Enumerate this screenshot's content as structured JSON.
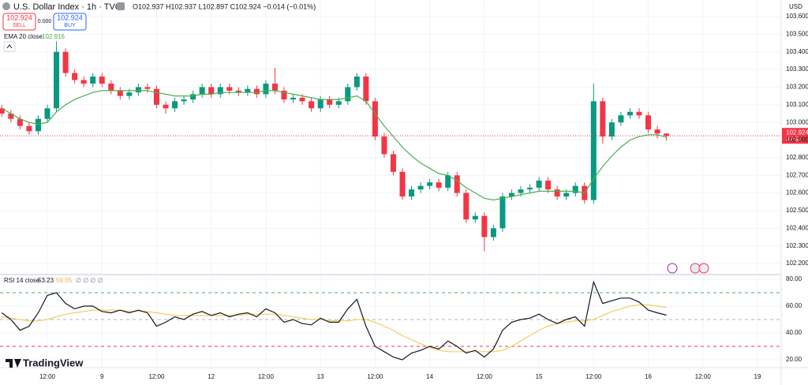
{
  "header": {
    "symbol": "U.S. Dollar Index · 1h · TVC",
    "ohlc": "O102.937 H102.937 L102.897 C102.924 −0.014 (−0.01%)",
    "sell_price": "102.924",
    "sell": "SELL",
    "spread": "0.000",
    "buy_price": "102.924",
    "buy": "BUY",
    "currency": "USD",
    "price_tag": "102.924",
    "countdown": "37:53",
    "logo": "TradingView",
    "rsi_extra": "∅ ∅ ∅ ∅"
  },
  "chart_data": [
    {
      "type": "candlestick",
      "up_color": "#089981",
      "down_color": "#f23645",
      "x": [
        -10,
        -8,
        -6,
        -4,
        -2,
        0,
        2,
        4,
        6,
        8,
        10,
        12,
        14,
        16,
        18,
        20,
        22,
        24,
        26,
        28,
        30,
        32,
        34,
        36,
        38,
        40,
        42,
        44,
        46,
        48,
        50,
        52,
        54,
        56,
        58,
        60,
        62,
        64,
        66,
        68,
        70,
        72,
        74,
        76,
        78,
        80,
        82,
        84,
        86,
        88,
        90,
        92,
        94,
        96,
        98,
        100,
        102,
        104,
        106,
        108,
        110,
        112,
        114,
        116,
        118,
        120,
        122,
        124,
        126,
        128,
        130,
        132,
        134,
        136
      ],
      "open": [
        103.08,
        103.05,
        103.02,
        102.98,
        102.95,
        103.02,
        103.08,
        103.4,
        103.28,
        103.24,
        103.22,
        103.26,
        103.22,
        103.18,
        103.15,
        103.17,
        103.2,
        103.19,
        103.1,
        103.08,
        103.12,
        103.13,
        103.16,
        103.2,
        103.16,
        103.2,
        103.18,
        103.17,
        103.19,
        103.16,
        103.22,
        103.18,
        103.13,
        103.14,
        103.12,
        103.08,
        103.13,
        103.1,
        103.12,
        103.2,
        103.26,
        103.12,
        102.92,
        102.82,
        102.72,
        102.58,
        102.62,
        102.64,
        102.66,
        102.63,
        102.7,
        102.6,
        102.45,
        102.47,
        102.35,
        102.4,
        102.58,
        102.6,
        102.62,
        102.63,
        102.67,
        102.62,
        102.58,
        102.6,
        102.64,
        102.56,
        103.12,
        102.92,
        103.0,
        103.04,
        103.06,
        103.04,
        102.96,
        102.937
      ],
      "high": [
        103.1,
        103.07,
        103.04,
        103.0,
        103.04,
        103.1,
        103.46,
        103.42,
        103.3,
        103.26,
        103.28,
        103.28,
        103.24,
        103.2,
        103.19,
        103.22,
        103.22,
        103.21,
        103.12,
        103.14,
        103.15,
        103.18,
        103.22,
        103.22,
        103.22,
        103.22,
        103.2,
        103.21,
        103.21,
        103.24,
        103.31,
        103.2,
        103.16,
        103.16,
        103.14,
        103.15,
        103.15,
        103.14,
        103.22,
        103.28,
        103.28,
        103.14,
        102.94,
        102.84,
        102.74,
        102.64,
        102.66,
        102.68,
        102.68,
        102.72,
        102.72,
        102.62,
        102.49,
        102.49,
        102.42,
        102.6,
        102.62,
        102.64,
        102.65,
        102.69,
        102.69,
        102.64,
        102.62,
        102.66,
        102.66,
        103.22,
        103.14,
        103.02,
        103.06,
        103.08,
        103.08,
        103.06,
        102.98,
        102.937
      ],
      "low": [
        103.03,
        103.0,
        102.96,
        102.93,
        102.93,
        103.0,
        103.06,
        103.26,
        103.22,
        103.2,
        103.2,
        103.2,
        103.16,
        103.13,
        103.13,
        103.15,
        103.17,
        103.08,
        103.05,
        103.06,
        103.1,
        103.11,
        103.14,
        103.14,
        103.14,
        103.16,
        103.15,
        103.15,
        103.14,
        103.14,
        103.16,
        103.11,
        103.11,
        103.1,
        103.06,
        103.06,
        103.08,
        103.08,
        103.1,
        103.18,
        103.1,
        102.9,
        102.8,
        102.7,
        102.56,
        102.56,
        102.6,
        102.62,
        102.61,
        102.61,
        102.58,
        102.43,
        102.43,
        102.27,
        102.33,
        102.38,
        102.56,
        102.58,
        102.6,
        102.61,
        102.6,
        102.56,
        102.56,
        102.58,
        102.54,
        102.54,
        102.88,
        102.9,
        102.98,
        103.02,
        103.02,
        102.94,
        102.91,
        102.897
      ],
      "close": [
        103.05,
        103.02,
        102.98,
        102.95,
        103.02,
        103.08,
        103.4,
        103.28,
        103.24,
        103.22,
        103.26,
        103.22,
        103.18,
        103.15,
        103.17,
        103.2,
        103.19,
        103.1,
        103.08,
        103.12,
        103.13,
        103.16,
        103.2,
        103.16,
        103.2,
        103.18,
        103.17,
        103.19,
        103.16,
        103.22,
        103.18,
        103.13,
        103.14,
        103.12,
        103.08,
        103.13,
        103.1,
        103.12,
        103.2,
        103.26,
        103.12,
        102.92,
        102.82,
        102.72,
        102.58,
        102.62,
        102.64,
        102.66,
        102.63,
        102.7,
        102.6,
        102.45,
        102.47,
        102.35,
        102.4,
        102.58,
        102.6,
        102.62,
        102.63,
        102.67,
        102.62,
        102.58,
        102.6,
        102.64,
        102.56,
        103.12,
        102.92,
        103.0,
        103.04,
        103.06,
        103.04,
        102.96,
        102.937,
        102.924
      ],
      "series": [
        {
          "name": "EMA 20 close",
          "color": "#4caf50",
          "last_label": "102.916",
          "values": [
            103.08,
            103.05,
            103.02,
            103.0,
            102.99,
            103.0,
            103.06,
            103.1,
            103.13,
            103.15,
            103.17,
            103.18,
            103.18,
            103.18,
            103.18,
            103.18,
            103.18,
            103.17,
            103.16,
            103.15,
            103.15,
            103.15,
            103.16,
            103.16,
            103.17,
            103.17,
            103.17,
            103.17,
            103.17,
            103.18,
            103.18,
            103.17,
            103.16,
            103.15,
            103.14,
            103.13,
            103.13,
            103.13,
            103.14,
            103.15,
            103.12,
            103.05,
            102.98,
            102.92,
            102.86,
            102.81,
            102.77,
            102.74,
            102.71,
            102.7,
            102.67,
            102.63,
            102.6,
            102.57,
            102.56,
            102.57,
            102.58,
            102.59,
            102.6,
            102.61,
            102.61,
            102.61,
            102.61,
            102.61,
            102.6,
            102.68,
            102.75,
            102.81,
            102.86,
            102.9,
            102.92,
            102.93,
            102.93,
            102.916
          ]
        }
      ],
      "xlim": [
        -10.4,
        161.2
      ],
      "ylim": [
        102.142,
        103.694
      ],
      "yticks": [
        {
          "value": 103.6,
          "label": "103.600"
        },
        {
          "value": 103.5,
          "label": "103.500"
        },
        {
          "value": 103.4,
          "label": "103.400"
        },
        {
          "value": 103.3,
          "label": "103.300"
        },
        {
          "value": 103.2,
          "label": "103.200"
        },
        {
          "value": 103.1,
          "label": "103.100"
        },
        {
          "value": 103.0,
          "label": "103.000"
        },
        {
          "value": 102.9,
          "label": "102.900"
        },
        {
          "value": 102.8,
          "label": "102.800"
        },
        {
          "value": 102.7,
          "label": "102.700"
        },
        {
          "value": 102.6,
          "label": "102.600"
        },
        {
          "value": 102.5,
          "label": "102.500"
        },
        {
          "value": 102.4,
          "label": "102.400"
        },
        {
          "value": 102.3,
          "label": "102.300"
        },
        {
          "value": 102.2,
          "label": "102.200"
        }
      ],
      "grid": true
    },
    {
      "type": "line",
      "x": [
        -10,
        -8,
        -6,
        -4,
        -2,
        0,
        2,
        4,
        6,
        8,
        10,
        12,
        14,
        16,
        18,
        20,
        22,
        24,
        26,
        28,
        30,
        32,
        34,
        36,
        38,
        40,
        42,
        44,
        46,
        48,
        50,
        52,
        54,
        56,
        58,
        60,
        62,
        64,
        66,
        68,
        70,
        72,
        74,
        76,
        78,
        80,
        82,
        84,
        86,
        88,
        90,
        92,
        94,
        96,
        98,
        100,
        102,
        104,
        106,
        108,
        110,
        112,
        114,
        116,
        118,
        120,
        122,
        124,
        126,
        128,
        130,
        132,
        134,
        136
      ],
      "series": [
        {
          "name": "RSI 14 close",
          "color": "#131722",
          "last_label": "53.23",
          "values": [
            55,
            50,
            42,
            45,
            55,
            68,
            70,
            62,
            58,
            60,
            60,
            56,
            55,
            57,
            55,
            57,
            55,
            45,
            48,
            52,
            50,
            54,
            56,
            53,
            55,
            52,
            54,
            55,
            52,
            58,
            55,
            48,
            50,
            47,
            46,
            51,
            48,
            48,
            58,
            65,
            45,
            30,
            26,
            22,
            20,
            25,
            27,
            30,
            28,
            34,
            30,
            25,
            27,
            22,
            28,
            42,
            48,
            50,
            51,
            54,
            50,
            47,
            50,
            52,
            45,
            78,
            62,
            64,
            66,
            66,
            63,
            57,
            55,
            53.23
          ]
        },
        {
          "color": "#f5cd5b",
          "last_label": "59.05",
          "values": [
            52,
            51,
            50,
            49,
            49,
            50,
            52,
            54,
            55,
            56,
            57,
            57,
            57,
            57,
            56,
            56,
            56,
            55,
            54,
            53,
            53,
            53,
            53,
            53,
            53,
            53,
            53,
            54,
            54,
            54,
            54,
            53,
            52,
            51,
            50,
            50,
            49,
            49,
            49,
            50,
            50,
            48,
            45,
            42,
            38,
            35,
            32,
            29,
            27,
            26,
            26,
            26,
            26,
            26,
            26,
            27,
            30,
            34,
            38,
            42,
            45,
            47,
            48,
            49,
            49,
            50,
            53,
            56,
            58,
            60,
            61,
            61,
            60,
            59.05
          ]
        }
      ],
      "levels": [
        {
          "value": 70,
          "color": "#4caf50"
        },
        {
          "value": 50,
          "color": "#b2b5be"
        },
        {
          "value": 30,
          "color": "#f23645"
        }
      ],
      "xlim": [
        -10.4,
        161.2
      ],
      "ylim": [
        14.7,
        82.35
      ],
      "yticks": [
        {
          "value": 80,
          "label": "80.00"
        },
        {
          "value": 60,
          "label": "60.00"
        },
        {
          "value": 40,
          "label": "40.00"
        },
        {
          "value": 20,
          "label": "20.00"
        }
      ],
      "xticks": [
        {
          "value": 0,
          "label": "12:00"
        },
        {
          "value": 12,
          "label": "9"
        },
        {
          "value": 24,
          "label": "12:00"
        },
        {
          "value": 36,
          "label": "12"
        },
        {
          "value": 48,
          "label": "12:00"
        },
        {
          "value": 60,
          "label": "13"
        },
        {
          "value": 72,
          "label": "12:00"
        },
        {
          "value": 84,
          "label": "14"
        },
        {
          "value": 96,
          "label": "12:00"
        },
        {
          "value": 108,
          "label": "15"
        },
        {
          "value": 120,
          "label": "12:00"
        },
        {
          "value": 132,
          "label": "16"
        },
        {
          "value": 144,
          "label": "12:00"
        },
        {
          "value": 156,
          "label": "19"
        }
      ],
      "grid": true
    }
  ]
}
